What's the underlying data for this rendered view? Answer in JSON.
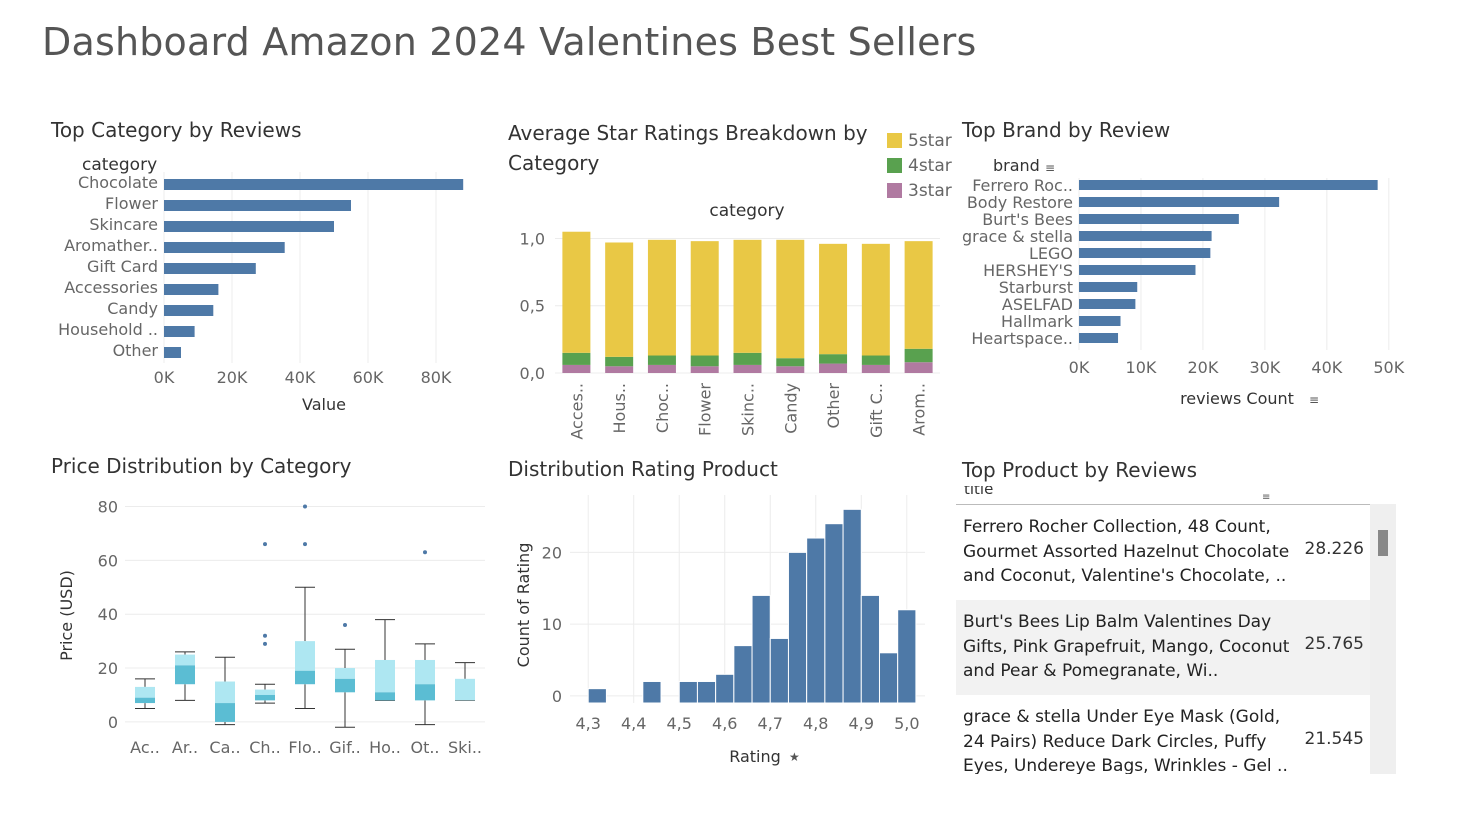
{
  "dashboard_title": "Dashboard Amazon 2024 Valentines Best Sellers",
  "colors": {
    "bar": "#4e79a7",
    "star5": "#e9c845",
    "star4": "#59a14f",
    "star3": "#b07aa1",
    "box_upper": "#aee7f2",
    "box_lower": "#5bbdd3",
    "outlier": "#4e79a7"
  },
  "panels": {
    "category_reviews": "Top Category by Reviews",
    "star_breakdown": "Average Star Ratings Breakdown by Category",
    "brand_reviews": "Top Brand by Review",
    "price_distribution": "Price Distribution by Category",
    "rating_distribution": "Distribution Rating Product",
    "product_reviews": "Top Product by Reviews"
  },
  "chart_data": [
    {
      "type": "bar",
      "orientation": "horizontal",
      "title": "Top Category by Reviews",
      "header_label": "category",
      "categories": [
        "Chocolate",
        "Flower",
        "Skincare",
        "Aromather..",
        "Gift Card",
        "Accessories",
        "Candy",
        "Household ..",
        "Other"
      ],
      "values": [
        88000,
        55000,
        50000,
        35500,
        27000,
        16000,
        14500,
        9000,
        5000
      ],
      "xlabel": "Value",
      "xlim": [
        0,
        90000
      ],
      "ticks": [
        0,
        20000,
        40000,
        60000,
        80000
      ],
      "tick_labels": [
        "0K",
        "20K",
        "40K",
        "60K",
        "80K"
      ],
      "grid": true
    },
    {
      "type": "bar",
      "stacked": true,
      "title": "Average Star Ratings Breakdown by Category",
      "header_label": "category",
      "categories": [
        "Acces..",
        "Hous..",
        "Choc..",
        "Flower",
        "Skinc..",
        "Candy",
        "Other",
        "Gift C..",
        "Arom.."
      ],
      "series": [
        {
          "name": "5star",
          "values": [
            0.9,
            0.85,
            0.86,
            0.85,
            0.84,
            0.88,
            0.82,
            0.83,
            0.8
          ]
        },
        {
          "name": "4star",
          "values": [
            0.09,
            0.07,
            0.07,
            0.08,
            0.09,
            0.06,
            0.07,
            0.07,
            0.1
          ]
        },
        {
          "name": "3star",
          "values": [
            0.06,
            0.05,
            0.06,
            0.05,
            0.06,
            0.05,
            0.07,
            0.06,
            0.08
          ]
        }
      ],
      "ylim": [
        0,
        1.1
      ],
      "ticks": [
        0,
        0.5,
        1.0
      ],
      "tick_labels": [
        "0,0",
        "0,5",
        "1,0"
      ],
      "legend": "top-right",
      "grid": true
    },
    {
      "type": "bar",
      "orientation": "horizontal",
      "title": "Top Brand by Review",
      "header_label": "brand",
      "categories": [
        "Ferrero Roc..",
        "Body Restore",
        "Burt's Bees",
        "grace & stella",
        "LEGO",
        "HERSHEY'S",
        "Starburst",
        "ASELFAD",
        "Hallmark",
        "Heartspace.."
      ],
      "values": [
        48200,
        32300,
        25800,
        21400,
        21200,
        18800,
        9400,
        9100,
        6700,
        6300
      ],
      "xlabel": "reviews Count",
      "xlim": [
        0,
        51000
      ],
      "ticks": [
        0,
        10000,
        20000,
        30000,
        40000,
        50000
      ],
      "tick_labels": [
        "0K",
        "10K",
        "20K",
        "30K",
        "40K",
        "50K"
      ],
      "grid": true
    },
    {
      "type": "box",
      "title": "Price Distribution by Category",
      "categories": [
        "Ac..",
        "Ar..",
        "Ca..",
        "Ch..",
        "Flo..",
        "Gif..",
        "Ho..",
        "Ot..",
        "Ski.."
      ],
      "boxes": [
        {
          "min": 5,
          "q1": 7,
          "median": 9,
          "q3": 13,
          "max": 16,
          "outliers": []
        },
        {
          "min": 8,
          "q1": 14,
          "median": 21,
          "q3": 25,
          "max": 26,
          "outliers": []
        },
        {
          "min": -1,
          "q1": 0,
          "median": 7,
          "q3": 15,
          "max": 24,
          "outliers": []
        },
        {
          "min": 7,
          "q1": 8,
          "median": 10,
          "q3": 12,
          "max": 14,
          "outliers": [
            29,
            32,
            66
          ]
        },
        {
          "min": 5,
          "q1": 14,
          "median": 19,
          "q3": 30,
          "max": 50,
          "outliers": [
            66,
            80
          ]
        },
        {
          "min": -2,
          "q1": 11,
          "median": 16,
          "q3": 20,
          "max": 27,
          "outliers": [
            36
          ]
        },
        {
          "min": 8,
          "q1": 8,
          "median": 11,
          "q3": 23,
          "max": 38,
          "outliers": []
        },
        {
          "min": -1,
          "q1": 8,
          "median": 14,
          "q3": 23,
          "max": 29,
          "outliers": [
            63
          ]
        },
        {
          "min": 8,
          "q1": 8,
          "median": 8,
          "q3": 16,
          "max": 22,
          "outliers": []
        }
      ],
      "ylabel": "Price (USD)",
      "ylim": [
        -3,
        85
      ],
      "ticks": [
        0,
        20,
        40,
        60,
        80
      ],
      "tick_labels": [
        "0",
        "20",
        "40",
        "60",
        "80"
      ],
      "grid": true
    },
    {
      "type": "bar",
      "subtype": "histogram",
      "title": "Distribution Rating Product",
      "x": [
        4.3,
        4.42,
        4.5,
        4.54,
        4.58,
        4.62,
        4.66,
        4.7,
        4.74,
        4.78,
        4.82,
        4.86,
        4.9,
        4.94,
        4.98
      ],
      "values": [
        1,
        2,
        2,
        2,
        3,
        7,
        14,
        8,
        20,
        22,
        24,
        26,
        14,
        6,
        12
      ],
      "bin_width": 0.04,
      "xlabel": "Rating",
      "ylabel": "Count of Rating",
      "xlim": [
        4.26,
        5.04
      ],
      "ylim": [
        -1,
        28
      ],
      "xticks": [
        4.3,
        4.4,
        4.5,
        4.6,
        4.7,
        4.8,
        4.9,
        5.0
      ],
      "xtick_labels": [
        "4,3",
        "4,4",
        "4,5",
        "4,6",
        "4,7",
        "4,8",
        "4,9",
        "5,0"
      ],
      "yticks": [
        0,
        10,
        20
      ],
      "ytick_labels": [
        "0",
        "10",
        "20"
      ],
      "grid": true
    },
    {
      "type": "table",
      "title": "Top Product by Reviews",
      "header": "title",
      "rows": [
        {
          "title": "Ferrero Rocher Collection, 48 Count, Gourmet Assorted Hazelnut Chocolate and Coconut, Valentine's Chocolate, ..",
          "value": "28.226"
        },
        {
          "title": "Burt's Bees Lip Balm Valentines Day Gifts, Pink Grapefruit, Mango, Coconut and Pear & Pomegranate, Wi..",
          "value": "25.765"
        },
        {
          "title": "grace & stella Under Eye Mask (Gold, 24 Pairs) Reduce Dark Circles, Puffy Eyes, Undereye Bags, Wrinkles - Gel ..",
          "value": "21.545"
        }
      ]
    }
  ]
}
